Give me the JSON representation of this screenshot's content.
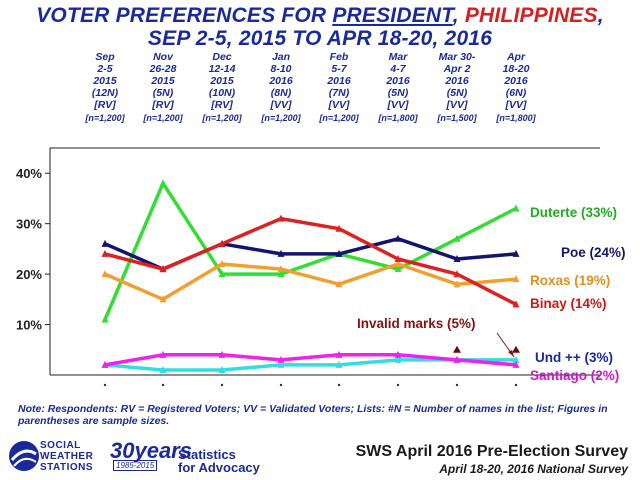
{
  "title": {
    "line1_pre": "VOTER PREFERENCES FOR ",
    "line1_u": "PRESIDENT",
    "line1_sep": ", ",
    "line1_red": "PHILIPPINES",
    "line1_post": ",",
    "line2": "SEP 2-5, 2015 TO APR 18-20, 2016"
  },
  "surveys": [
    {
      "l1": "Sep",
      "l2": "2-5",
      "l3": "2015",
      "l4": "(12N)",
      "l5": "[RV]",
      "l6": "[n=1,200]"
    },
    {
      "l1": "Nov",
      "l2": "26-28",
      "l3": "2015",
      "l4": "(5N)",
      "l5": "[RV]",
      "l6": "[n=1,200]"
    },
    {
      "l1": "Dec",
      "l2": "12-14",
      "l3": "2015",
      "l4": "(10N)",
      "l5": "[RV]",
      "l6": "[n=1,200]"
    },
    {
      "l1": "Jan",
      "l2": "8-10",
      "l3": "2016",
      "l4": "(8N)",
      "l5": "[VV]",
      "l6": "[n=1,200]"
    },
    {
      "l1": "Feb",
      "l2": "5-7",
      "l3": "2016",
      "l4": "(7N)",
      "l5": "[VV]",
      "l6": "[n=1,200]"
    },
    {
      "l1": "Mar",
      "l2": "4-7",
      "l3": "2016",
      "l4": "(5N)",
      "l5": "[VV]",
      "l6": "[n=1,800]"
    },
    {
      "l1": "Mar 30-",
      "l2": "Apr 2",
      "l3": "2016",
      "l4": "(5N)",
      "l5": "[VV]",
      "l6": "[n=1,500]"
    },
    {
      "l1": "Apr",
      "l2": "18-20",
      "l3": "2016",
      "l4": "(6N)",
      "l5": "[VV]",
      "l6": "[n=1,800]"
    }
  ],
  "chart_data": {
    "type": "line",
    "ylim": [
      0,
      45
    ],
    "yticks": [
      "10%",
      "20%",
      "30%",
      "40%"
    ],
    "ytick_values": [
      10,
      20,
      30,
      40
    ],
    "series": [
      {
        "name": "Duterte",
        "label": "Duterte (33%)",
        "color": "#33dd33",
        "values": [
          11,
          38,
          20,
          20,
          24,
          21,
          27,
          33
        ]
      },
      {
        "name": "Poe",
        "label": "Poe (24%)",
        "color": "#14146e",
        "values": [
          26,
          21,
          26,
          24,
          24,
          27,
          23,
          24
        ]
      },
      {
        "name": "Roxas",
        "label": "Roxas (19%)",
        "color": "#f0a030",
        "values": [
          20,
          15,
          22,
          21,
          18,
          22,
          18,
          19
        ]
      },
      {
        "name": "Binay",
        "label": "Binay (14%)",
        "color": "#dd2020",
        "values": [
          24,
          21,
          26,
          31,
          29,
          23,
          20,
          14
        ]
      },
      {
        "name": "Und ++",
        "label": "Und ++ (3%)",
        "color": "#33dddd",
        "values": [
          2,
          1,
          1,
          2,
          2,
          3,
          3,
          3
        ]
      },
      {
        "name": "Santiago",
        "label": "Santiago (2%)",
        "color": "#ee22ee",
        "values": [
          2,
          4,
          4,
          3,
          4,
          4,
          3,
          2
        ]
      }
    ],
    "invalid_marks": {
      "label": "Invalid marks (5%)",
      "values": [
        5,
        5
      ]
    }
  },
  "note": "Note: Respondents: RV = Registered Voters; VV = Validated Voters; Lists: #N = Number of names in the list; Figures in parentheses are sample sizes.",
  "footer": {
    "logo_l1": "SOCIAL",
    "logo_l2": "WEATHER",
    "logo_l3": "STATIONS",
    "years": "30years",
    "years_range": "1985-2015",
    "tag1": "Statistics",
    "tag2": "for Advocacy",
    "survey": "SWS April 2016 Pre-Election Survey",
    "survey_sub": "April 18-20, 2016 National Survey"
  }
}
